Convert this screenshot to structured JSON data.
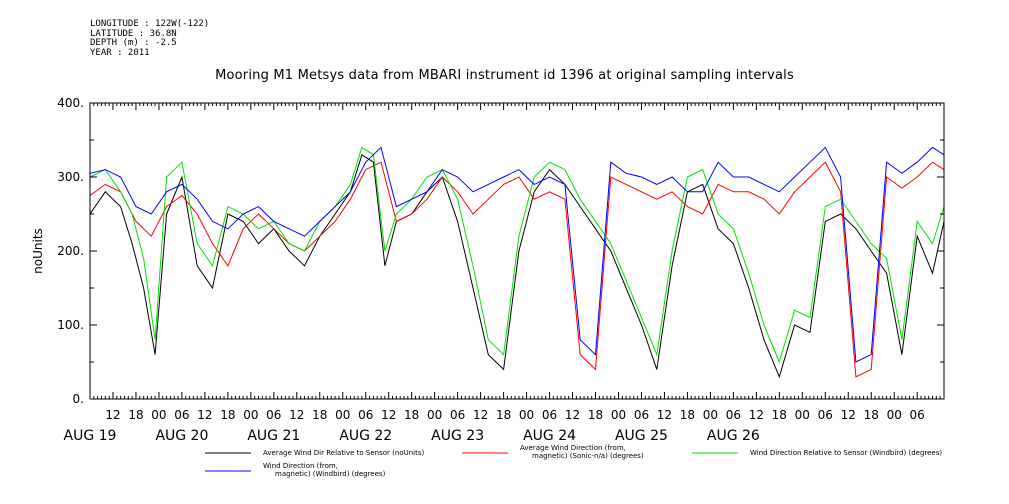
{
  "header": {
    "meta_lines": [
      "LONGITUDE : 122W(-122)",
      "LATITUDE : 36.8N",
      "DEPTH (m) : -2.5",
      "YEAR : 2011"
    ]
  },
  "chart_data": {
    "type": "line",
    "title": "Mooring M1 Metsys data from MBARI instrument id 1396 at original sampling intervals",
    "ylabel": "noUnits",
    "xlabel": "",
    "ylim": [
      0,
      400
    ],
    "yticks": [
      0,
      100,
      200,
      300,
      400
    ],
    "ytick_labels": [
      "0.",
      "100.",
      "200.",
      "300.",
      "400."
    ],
    "x_unit": "hours since AUG 19 00:00, 2011",
    "xlim": [
      6,
      229
    ],
    "xticks_hours": [
      12,
      18,
      24,
      30,
      36,
      42,
      48,
      54,
      60,
      66,
      72,
      78,
      84,
      90,
      96,
      102,
      108,
      114,
      120,
      126,
      132,
      138,
      144,
      150,
      156,
      162,
      168,
      174,
      180,
      186,
      192,
      198,
      204,
      210,
      216,
      222
    ],
    "xtick_labels": [
      "12",
      "18",
      "00",
      "06",
      "12",
      "18",
      "00",
      "06",
      "12",
      "18",
      "00",
      "06",
      "12",
      "18",
      "00",
      "06",
      "12",
      "18",
      "00",
      "06",
      "12",
      "18",
      "00",
      "06",
      "12",
      "18",
      "00",
      "06",
      "12",
      "18",
      "00",
      "06",
      "12",
      "18",
      "00",
      "06"
    ],
    "day_labels": [
      {
        "hour": 0,
        "label": "AUG 19"
      },
      {
        "hour": 24,
        "label": "AUG 20"
      },
      {
        "hour": 48,
        "label": "AUG 21"
      },
      {
        "hour": 72,
        "label": "AUG 22"
      },
      {
        "hour": 96,
        "label": "AUG 23"
      },
      {
        "hour": 120,
        "label": "AUG 24"
      },
      {
        "hour": 144,
        "label": "AUG 25"
      },
      {
        "hour": 168,
        "label": "AUG 26"
      }
    ],
    "grid": false,
    "legend_position": "bottom",
    "series": [
      {
        "name": "Average Wind Dir Relative to Sensor (noUnits)",
        "color": "#000000",
        "x": [
          6,
          10,
          14,
          17,
          20,
          23,
          26,
          30,
          34,
          38,
          42,
          46,
          50,
          54,
          58,
          62,
          66,
          70,
          74,
          77,
          80,
          83,
          86,
          90,
          94,
          98,
          102,
          106,
          110,
          114,
          118,
          122,
          126,
          130,
          134,
          138,
          142,
          146,
          150,
          154,
          158,
          162,
          166,
          170,
          174,
          178,
          182,
          186,
          190,
          194,
          198,
          202,
          206,
          210,
          214,
          218,
          222,
          226,
          229
        ],
        "values": [
          250,
          280,
          260,
          210,
          150,
          60,
          250,
          300,
          180,
          150,
          250,
          240,
          210,
          230,
          200,
          180,
          220,
          250,
          280,
          330,
          320,
          180,
          240,
          250,
          280,
          300,
          240,
          150,
          60,
          40,
          200,
          280,
          310,
          290,
          260,
          230,
          200,
          150,
          100,
          40,
          180,
          280,
          290,
          230,
          210,
          150,
          80,
          30,
          100,
          90,
          240,
          250,
          230,
          200,
          170,
          60,
          220,
          170,
          240
        ]
      },
      {
        "name": "Average Wind Direction (from, magnetic) (Sonic-n/a) (degrees)",
        "color": "#ff0000",
        "x": [
          6,
          10,
          14,
          18,
          22,
          26,
          30,
          34,
          38,
          42,
          46,
          50,
          54,
          58,
          62,
          66,
          70,
          74,
          78,
          82,
          86,
          90,
          94,
          98,
          102,
          106,
          110,
          114,
          118,
          122,
          126,
          130,
          134,
          138,
          142,
          146,
          150,
          154,
          158,
          162,
          166,
          170,
          174,
          178,
          182,
          186,
          190,
          194,
          198,
          202,
          206,
          210,
          214,
          218,
          222,
          226,
          229
        ],
        "values": [
          275,
          290,
          280,
          240,
          220,
          260,
          275,
          250,
          210,
          180,
          230,
          250,
          230,
          210,
          200,
          220,
          240,
          270,
          310,
          320,
          240,
          250,
          270,
          300,
          280,
          250,
          270,
          290,
          300,
          270,
          280,
          270,
          60,
          40,
          300,
          290,
          280,
          270,
          280,
          260,
          250,
          290,
          280,
          280,
          270,
          250,
          280,
          300,
          320,
          280,
          30,
          40,
          300,
          285,
          300,
          320,
          310
        ]
      },
      {
        "name": "Wind Direction Relative to Sensor (Windbird) (degrees)",
        "color": "#00e000",
        "x": [
          6,
          10,
          14,
          17,
          20,
          23,
          26,
          30,
          34,
          38,
          42,
          46,
          50,
          54,
          58,
          62,
          66,
          70,
          74,
          77,
          80,
          83,
          86,
          90,
          94,
          98,
          102,
          106,
          110,
          114,
          118,
          122,
          126,
          130,
          134,
          138,
          142,
          146,
          150,
          154,
          158,
          162,
          166,
          170,
          174,
          178,
          182,
          186,
          190,
          194,
          198,
          202,
          206,
          210,
          214,
          218,
          222,
          226,
          229
        ],
        "values": [
          300,
          310,
          280,
          250,
          190,
          80,
          300,
          320,
          210,
          180,
          260,
          250,
          230,
          240,
          210,
          200,
          240,
          260,
          290,
          340,
          330,
          200,
          250,
          270,
          300,
          310,
          270,
          180,
          80,
          60,
          220,
          300,
          320,
          310,
          270,
          240,
          210,
          160,
          110,
          60,
          200,
          300,
          310,
          250,
          230,
          170,
          100,
          50,
          120,
          110,
          260,
          270,
          240,
          210,
          190,
          80,
          240,
          210,
          260
        ]
      },
      {
        "name": "Wind Direction (from, magnetic) (Windbird) (degrees)",
        "color": "#0000ff",
        "x": [
          6,
          10,
          14,
          18,
          22,
          26,
          30,
          34,
          38,
          42,
          46,
          50,
          54,
          58,
          62,
          66,
          70,
          74,
          78,
          82,
          86,
          90,
          94,
          98,
          102,
          106,
          110,
          114,
          118,
          122,
          126,
          130,
          134,
          138,
          142,
          146,
          150,
          154,
          158,
          162,
          166,
          170,
          174,
          178,
          182,
          186,
          190,
          194,
          198,
          202,
          206,
          210,
          214,
          218,
          222,
          226,
          229
        ],
        "values": [
          305,
          310,
          300,
          260,
          250,
          280,
          290,
          270,
          240,
          230,
          250,
          260,
          240,
          230,
          220,
          240,
          260,
          280,
          320,
          340,
          260,
          270,
          280,
          310,
          300,
          280,
          290,
          300,
          310,
          290,
          300,
          290,
          80,
          60,
          320,
          305,
          300,
          290,
          300,
          280,
          280,
          320,
          300,
          300,
          290,
          280,
          300,
          320,
          340,
          300,
          50,
          60,
          320,
          305,
          320,
          340,
          330
        ]
      }
    ]
  }
}
